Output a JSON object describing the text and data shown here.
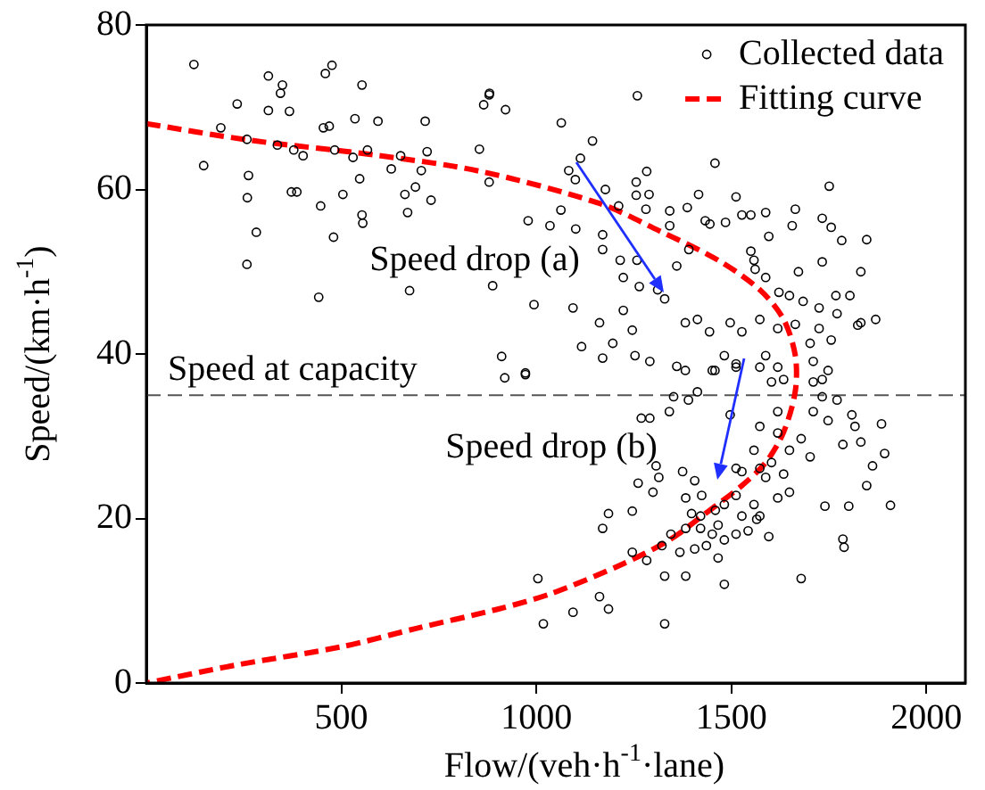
{
  "chart_data": {
    "type": "scatter",
    "xlabel": "Flow/(veh·h$^{-1}$·lane)",
    "ylabel": "Speed/(km·h$^{-1}$)",
    "xlim": [
      0,
      2100
    ],
    "ylim": [
      0,
      80
    ],
    "xticks": [
      500,
      1000,
      1500,
      2000
    ],
    "yticks": [
      0,
      20,
      40,
      60,
      80
    ],
    "grid": false,
    "legend": "top right",
    "series": [
      {
        "name": "Collected data",
        "color": "#000000",
        "marker": "circle",
        "x": [
          122,
          147,
          191,
          233,
          258,
          259,
          262,
          258,
          282,
          313,
          313,
          336,
          344,
          349,
          367,
          372,
          386,
          378,
          402,
          447,
          442,
          459,
          476,
          454,
          469,
          480,
          483,
          504,
          530,
          535,
          547,
          553,
          553,
          555,
          567,
          594,
          628,
          652,
          663,
          670,
          675,
          690,
          705,
          715,
          720,
          730,
          854,
          865,
          879,
          879,
          888,
          880,
          921,
          1064,
          1144,
          1113,
          1083,
          1100,
          1259,
          1458,
          1177,
          1283,
          1256,
          1256,
          1289,
          1211,
          1281,
          1342,
          1387,
          1416,
          1512,
          1588,
          1664,
          1751,
          979,
          1063,
          1035,
          1101,
          1170,
          1170,
          1215,
          1223,
          1258,
          1264,
          1311,
          1329,
          1223,
          1342,
          1360,
          1391,
          1433,
          1445,
          1485,
          1527,
          1550,
          1596,
          1656,
          1733,
          1756,
          1783,
          1847,
          1733,
          1672,
          1588,
          1558,
          1550,
          1561,
          1622,
          1649,
          1684,
          1725,
          1768,
          1804,
          1832,
          1832,
          1870,
          1771,
          1824,
          994,
          1094,
          1162,
          1246,
          1170,
          1253,
          1291,
          911,
          972,
          1382,
          1413,
          1444,
          1497,
          1527,
          1573,
          1619,
          1664,
          1725,
          1702,
          1710,
          1756,
          1116,
          1196,
          1360,
          1382,
          1451,
          1482,
          1512,
          1588,
          1619,
          1733,
          1748,
          1634,
          919,
          972,
          1269,
          1291,
          1341,
          1352,
          1390,
          1413,
          1458,
          1512,
          1573,
          1603,
          1710,
          1733,
          1771,
          1809,
          1710,
          1748,
          1817,
          1832,
          1893,
          1885,
          1786,
          1862,
          1847,
          1908,
          1801,
          1740,
          1786,
          1789,
          1679,
          1482,
          1466,
          1383,
          1329,
          1283,
          1246,
          1170,
          1185,
          1246,
          1261,
          1299,
          1314,
          1307,
          1375,
          1383,
          1406,
          1424,
          1398,
          1421,
          1459,
          1482,
          1512,
          1527,
          1558,
          1573,
          1543,
          1512,
          1482,
          1451,
          1436,
          1406,
          1368,
          1345,
          1322,
          1383,
          1421,
          1466,
          1527,
          1512,
          1573,
          1603,
          1634,
          1649,
          1619,
          1679,
          1702,
          1649,
          1619,
          1596,
          1565,
          1588,
          1558,
          1619,
          1497,
          1573,
          1004,
          1094,
          1162,
          1185,
          1018,
          1329
        ],
        "values": [
          75.2,
          62.9,
          67.5,
          70.4,
          66.1,
          59.0,
          61.7,
          50.9,
          54.8,
          73.8,
          69.6,
          65.4,
          71.7,
          72.7,
          69.5,
          59.7,
          59.7,
          64.8,
          64.1,
          58.0,
          46.9,
          74.1,
          75.1,
          67.5,
          67.7,
          54.2,
          64.8,
          59.4,
          63.9,
          68.6,
          61.3,
          72.7,
          56.9,
          55.9,
          64.8,
          68.3,
          62.5,
          64.1,
          59.4,
          57.2,
          47.7,
          60.3,
          62.3,
          68.3,
          64.6,
          58.7,
          64.9,
          70.3,
          71.5,
          60.9,
          48.3,
          71.7,
          69.7,
          68.1,
          65.9,
          63.8,
          62.3,
          61.2,
          71.4,
          63.2,
          60.0,
          62.2,
          60.9,
          59.3,
          59.4,
          58.0,
          57.6,
          57.4,
          57.8,
          59.4,
          59.1,
          57.2,
          57.6,
          60.4,
          56.2,
          57.5,
          55.6,
          55.2,
          54.5,
          52.7,
          51.4,
          49.3,
          51.4,
          48.2,
          47.8,
          46.7,
          45.3,
          55.6,
          50.7,
          52.7,
          56.2,
          55.8,
          56.0,
          56.9,
          56.9,
          54.3,
          55.6,
          56.5,
          55.4,
          53.8,
          53.9,
          51.2,
          50.0,
          49.3,
          51.4,
          52.5,
          50.3,
          47.5,
          47.1,
          46.4,
          45.6,
          47.1,
          47.1,
          50.0,
          43.8,
          44.2,
          44.9,
          43.5,
          46.0,
          45.6,
          43.8,
          42.9,
          39.5,
          39.8,
          39.1,
          39.7,
          37.7,
          43.8,
          44.2,
          42.7,
          43.8,
          42.7,
          44.2,
          43.1,
          43.6,
          43.1,
          41.3,
          39.1,
          41.7,
          40.9,
          41.3,
          38.5,
          38.0,
          38.0,
          39.8,
          38.4,
          39.8,
          38.4,
          36.9,
          38.0,
          36.9,
          37.1,
          37.5,
          32.2,
          32.2,
          33.0,
          34.8,
          34.4,
          35.4,
          38.0,
          38.8,
          38.4,
          36.6,
          36.6,
          34.8,
          34.4,
          32.6,
          33.0,
          31.9,
          31.2,
          29.3,
          27.9,
          31.5,
          29.0,
          26.4,
          24.0,
          21.6,
          21.5,
          21.5,
          17.5,
          16.5,
          12.7,
          12.0,
          15.2,
          13.0,
          13.0,
          14.9,
          15.9,
          18.8,
          20.6,
          20.9,
          24.3,
          23.2,
          25.0,
          26.4,
          25.7,
          22.5,
          24.6,
          22.8,
          20.6,
          20.3,
          21.0,
          21.7,
          22.8,
          20.3,
          21.7,
          20.3,
          18.5,
          18.1,
          17.4,
          18.1,
          16.7,
          16.3,
          15.9,
          18.1,
          16.7,
          18.8,
          18.8,
          19.2,
          25.7,
          26.1,
          26.1,
          26.8,
          25.4,
          28.3,
          30.4,
          29.7,
          27.5,
          23.2,
          22.5,
          17.8,
          19.9,
          25.0,
          28.3,
          33.0,
          32.6,
          31.2,
          12.7,
          8.6,
          10.5,
          9.0,
          7.2,
          7.2
        ]
      },
      {
        "name": "Fitting curve",
        "type": "line",
        "color": "#ff0000",
        "line_style": "dashed",
        "marker": "none",
        "x": [
          0,
          264,
          584,
          857,
          1162,
          1314,
          1466,
          1573,
          1634,
          1664,
          1664,
          1634,
          1588,
          1527,
          1436,
          1345,
          1223,
          1040,
          903,
          689,
          500,
          232,
          0
        ],
        "values": [
          68,
          66.0,
          64.2,
          62.2,
          58.3,
          55,
          51.4,
          47.8,
          44.2,
          39.8,
          35.5,
          30.5,
          26.8,
          24.0,
          20.7,
          17.5,
          14.5,
          10.9,
          9.0,
          6.6,
          4.4,
          2.2,
          0
        ]
      }
    ],
    "ref_lines": [
      {
        "axis": "y",
        "value": 35,
        "label": "Speed at capacity",
        "color": "#555555",
        "line_style": "dashed"
      }
    ],
    "annotations": [
      "Speed drop (a)",
      "Speed drop (b)"
    ]
  }
}
